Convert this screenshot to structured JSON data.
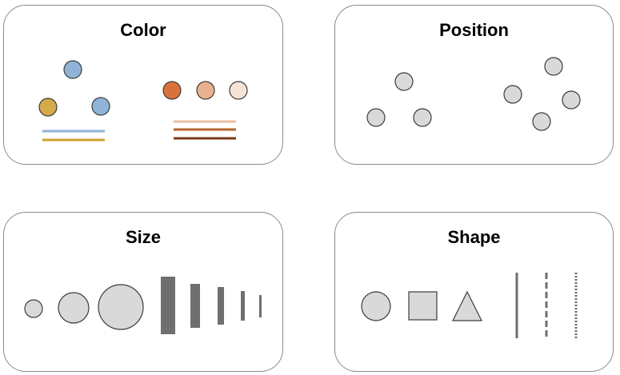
{
  "panels": {
    "color": {
      "title": "Color"
    },
    "position": {
      "title": "Position"
    },
    "size": {
      "title": "Size"
    },
    "shape": {
      "title": "Shape"
    }
  },
  "colors": {
    "panel_border": "#8a8a8a",
    "neutral_fill": "#d9d9d9",
    "neutral_stroke": "#3c3c3c",
    "gray_mark": "#6f6f6f",
    "blue": "#8fb4d8",
    "gold": "#d4aa4a",
    "orange_dark": "#d9723a",
    "orange_mid": "#e8b090",
    "orange_light": "#f7e3d6",
    "line_blue": "#8fb4d8",
    "line_gold": "#c9a12d",
    "line_tan": "#e8bfa2",
    "line_sienna": "#b8642d",
    "line_brown": "#7a3a14"
  }
}
